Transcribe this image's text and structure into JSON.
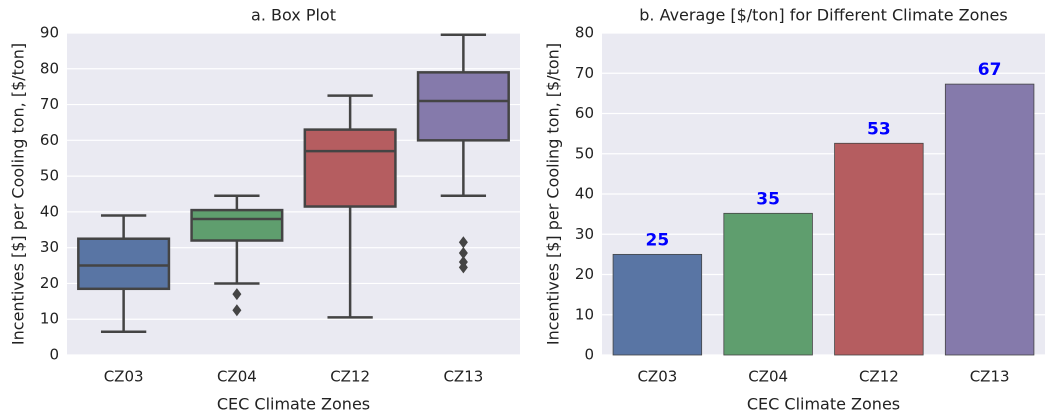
{
  "chart_data": [
    {
      "type": "box",
      "title": "a. Box Plot",
      "x_label": "CEC Climate Zones",
      "y_label": "Incentives [$] per Cooling ton, [$/ton]",
      "categories": [
        "CZ03",
        "CZ04",
        "CZ12",
        "CZ13"
      ],
      "colors": [
        "#5975a4",
        "#5f9e6e",
        "#b55d60",
        "#857aab"
      ],
      "boxes": [
        {
          "whislo": 6.5,
          "q1": 18.5,
          "med": 25,
          "q3": 32.5,
          "whishi": 39,
          "fliers": []
        },
        {
          "whislo": 20,
          "q1": 32,
          "med": 38,
          "q3": 40.5,
          "whishi": 44.5,
          "fliers": [
            17,
            12.5
          ]
        },
        {
          "whislo": 10.5,
          "q1": 41.5,
          "med": 57,
          "q3": 63,
          "whishi": 72.5,
          "fliers": []
        },
        {
          "whislo": 44.5,
          "q1": 60,
          "med": 71,
          "q3": 79,
          "whishi": 89.5,
          "fliers": [
            31.5,
            28.5,
            26,
            24.5
          ]
        }
      ],
      "ylim": [
        0,
        90
      ],
      "yticks": [
        0,
        10,
        20,
        30,
        40,
        50,
        60,
        70,
        80,
        90
      ],
      "grid": true
    },
    {
      "type": "bar",
      "title": "b. Average [$/ton] for Different Climate Zones",
      "x_label": "CEC Climate Zones",
      "y_label": "Incentives [$] per Cooling ton, [$/ton]",
      "categories": [
        "CZ03",
        "CZ04",
        "CZ12",
        "CZ13"
      ],
      "colors": [
        "#5975a4",
        "#5f9e6e",
        "#b55d60",
        "#857aab"
      ],
      "values": [
        25,
        35.2,
        52.6,
        67.3
      ],
      "value_labels": [
        "25",
        "35",
        "53",
        "67"
      ],
      "label_color": "#0000ff",
      "ylim": [
        0,
        80
      ],
      "yticks": [
        0,
        10,
        20,
        30,
        40,
        50,
        60,
        70,
        80
      ],
      "grid": true
    }
  ]
}
